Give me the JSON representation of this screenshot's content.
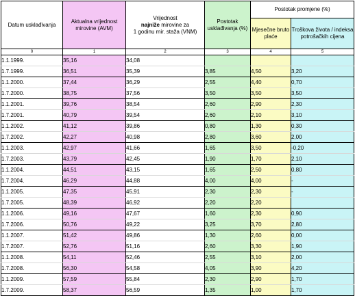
{
  "header": {
    "datum": "Datum usklađivanja",
    "avm": "Aktualna vrijednost mirovine (AVM)",
    "vnm_line1": "Vrijednost",
    "vnm_bold": "najniže",
    "vnm_line2": "mirovine za",
    "vnm_line3": "1 godinu mir. staža (VNM)",
    "postotak": "Postotak usklađivanja (%)",
    "promjene": "Postotak promjene (%)",
    "bruto": "Mjesečne bruto plaće",
    "troskovi": "Troškova života / indeksa potrošačkih cijena",
    "col_numbers": [
      "0",
      "1",
      "2",
      "3",
      "4",
      "5"
    ]
  },
  "rows": [
    {
      "date": "1.1.1999.",
      "avm": "35,16",
      "vnm": "34,08",
      "pct": "",
      "bruto": "",
      "cost": ""
    },
    {
      "date": "1.7.1999.",
      "avm": "36,51",
      "vnm": "35,39",
      "pct": "3,85",
      "bruto": "4,50",
      "cost": "3,20"
    },
    {
      "date": "1.1.2000.",
      "avm": "37,44",
      "vnm": "36,29",
      "pct": "2,55",
      "bruto": "4,40",
      "cost": "0,70"
    },
    {
      "date": "1.7.2000.",
      "avm": "38,75",
      "vnm": "37,56",
      "pct": "3,50",
      "bruto": "3,50",
      "cost": "3,50"
    },
    {
      "date": "1.1.2001.",
      "avm": "39,76",
      "vnm": "38,54",
      "pct": "2,60",
      "bruto": "2,90",
      "cost": "2,30"
    },
    {
      "date": "1.7.2001.",
      "avm": "40,79",
      "vnm": "39,54",
      "pct": "2,60",
      "bruto": "2,10",
      "cost": "3,10"
    },
    {
      "date": "1.1.2002.",
      "avm": "41,12",
      "vnm": "39,86",
      "pct": "0,80",
      "bruto": "1,30",
      "cost": "0,30"
    },
    {
      "date": "1.7.2002.",
      "avm": "42,27",
      "vnm": "40,98",
      "pct": "2,80",
      "bruto": "3,60",
      "cost": "2,00"
    },
    {
      "date": "1.1.2003.",
      "avm": "42,97",
      "vnm": "41,66",
      "pct": "1,65",
      "bruto": "3,50",
      "cost": "-0,20"
    },
    {
      "date": "1.7.2003.",
      "avm": "43,79",
      "vnm": "42,45",
      "pct": "1,90",
      "bruto": "1,70",
      "cost": "2,10"
    },
    {
      "date": "1.1.2004.",
      "avm": "44,51",
      "vnm": "43,15",
      "pct": "1,65",
      "bruto": "2,50",
      "cost": "0,80"
    },
    {
      "date": "1.7.2004.",
      "avm": "46,29",
      "vnm": "44,88",
      "pct": "4,00",
      "bruto": "4,00",
      "cost": "-"
    },
    {
      "date": "1.1.2005.",
      "avm": "47,35",
      "vnm": "45,91",
      "pct": "2,30",
      "bruto": "2,30",
      "cost": "-"
    },
    {
      "date": "1.7.2005.",
      "avm": "48,39",
      "vnm": "46,92",
      "pct": "2,20",
      "bruto": "2,20",
      "cost": ""
    },
    {
      "date": "1.1.2006.",
      "avm": "49,16",
      "vnm": "47,67",
      "pct": "1,60",
      "bruto": "2,30",
      "cost": "0,90"
    },
    {
      "date": "1.7.2006.",
      "avm": "50,76",
      "vnm": "49,22",
      "pct": "3,25",
      "bruto": "3,70",
      "cost": "2,80"
    },
    {
      "date": "1.1.2007.",
      "avm": "51,42",
      "vnm": "49,86",
      "pct": "1,30",
      "bruto": "2,60",
      "cost": "0,00"
    },
    {
      "date": "1.7.2007.",
      "avm": "52,76",
      "vnm": "51,16",
      "pct": "2,60",
      "bruto": "3,30",
      "cost": "1,90"
    },
    {
      "date": "1.1.2008.",
      "avm": "54,11",
      "vnm": "52,46",
      "pct": "2,55",
      "bruto": "3,10",
      "cost": "2,00"
    },
    {
      "date": "1.7.2008.",
      "avm": "56,30",
      "vnm": "54,58",
      "pct": "4,05",
      "bruto": "3,90",
      "cost": "4,20"
    },
    {
      "date": "1.1.2009.",
      "avm": "57,59",
      "vnm": "55,84",
      "pct": "2,30",
      "bruto": "2,90",
      "cost": "1,70"
    },
    {
      "date": "1.7.2009.",
      "avm": "58,37",
      "vnm": "56,59",
      "pct": "1,35",
      "bruto": "1,00",
      "cost": "1,70"
    }
  ]
}
